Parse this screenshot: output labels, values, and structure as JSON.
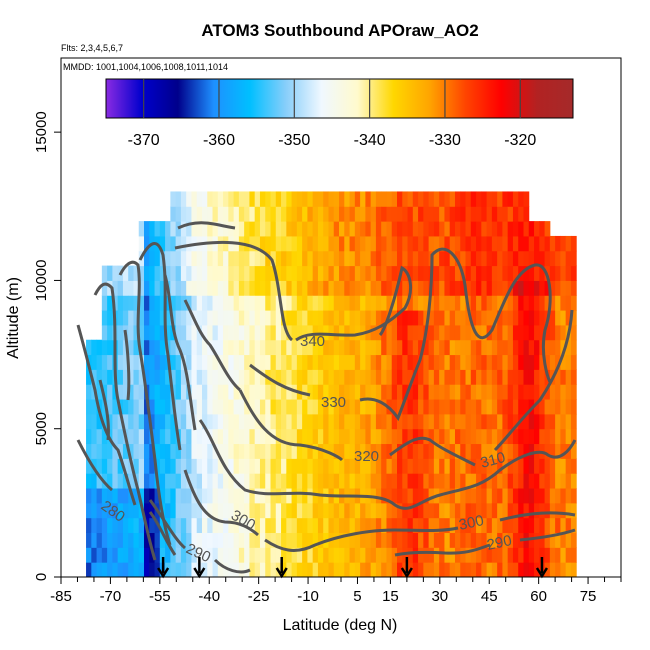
{
  "chart_data": {
    "type": "heatmap",
    "title": "ATOM3 Southbound APOraw_AO2",
    "subtitle_flights": "Flts: 2,3,4,5,6,7",
    "subtitle_dates": "MMDD: 1001,1004,1006,1008,1011,1014",
    "xlabel": "Latitude (deg N)",
    "ylabel": "Altitude (m)",
    "xlim": [
      -85,
      85
    ],
    "ylim": [
      0,
      17500
    ],
    "x_ticks": [
      "-85",
      "-70",
      "-55",
      "-40",
      "-25",
      "-10",
      "5",
      "15",
      "30",
      "45",
      "60",
      "75"
    ],
    "y_ticks": [
      "0",
      "5000",
      "10000",
      "15000"
    ],
    "colorbar": {
      "range": [
        -375,
        -313
      ],
      "ticks": [
        "-370",
        "-360",
        "-350",
        "-340",
        "-330",
        "-320"
      ],
      "colors": [
        "#8a2be2",
        "#0000cd",
        "#00008b",
        "#1e90ff",
        "#00bfff",
        "#87cefa",
        "#f0f8ff",
        "#fffacd",
        "#ffd700",
        "#ffa500",
        "#ff4500",
        "#ff0000",
        "#b22222",
        "#a52a2a"
      ]
    },
    "contour_labels": [
      "340",
      "330",
      "320",
      "310",
      "300",
      "290",
      "280",
      "300",
      "290"
    ],
    "arrow_latitudes": [
      -54,
      -43,
      -18,
      20,
      61
    ]
  }
}
